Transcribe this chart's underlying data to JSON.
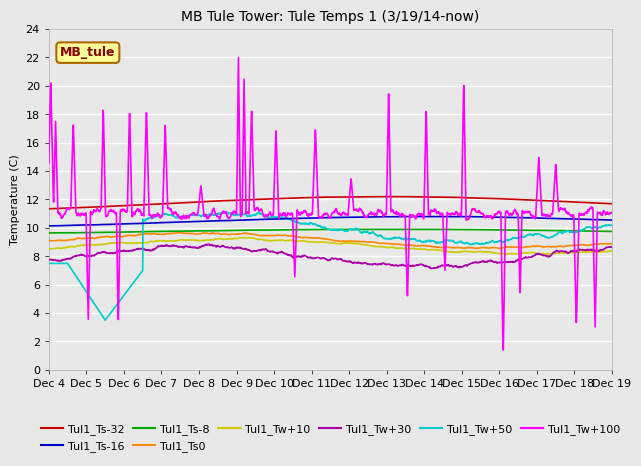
{
  "title": "MB Tule Tower: Tule Temps 1 (3/19/14-now)",
  "ylabel": "Temperature (C)",
  "xlim": [
    0,
    15
  ],
  "ylim": [
    0,
    24
  ],
  "yticks": [
    0,
    2,
    4,
    6,
    8,
    10,
    12,
    14,
    16,
    18,
    20,
    22,
    24
  ],
  "xtick_labels": [
    "Dec 4",
    "Dec 5",
    "Dec 6",
    "Dec 7",
    "Dec 8",
    "Dec 9",
    "Dec 10",
    "Dec 11",
    "Dec 12",
    "Dec 13",
    "Dec 14",
    "Dec 15",
    "Dec 16",
    "Dec 17",
    "Dec 18",
    "Dec 19"
  ],
  "bg_color": "#e8e8e8",
  "grid_color": "#ffffff",
  "legend_label": "MB_tule",
  "legend_bg": "#ffff99",
  "legend_border": "#aa6600",
  "legend_text_color": "#880000",
  "series": [
    {
      "label": "Tul1_Ts-32",
      "color": "#cc0000",
      "lw": 1.2,
      "zorder": 5
    },
    {
      "label": "Tul1_Ts-16",
      "color": "#0000cc",
      "lw": 1.2,
      "zorder": 4
    },
    {
      "label": "Tul1_Ts-8",
      "color": "#00aa00",
      "lw": 1.2,
      "zorder": 3
    },
    {
      "label": "Tul1_Ts0",
      "color": "#ff8800",
      "lw": 1.2,
      "zorder": 3
    },
    {
      "label": "Tul1_Tw+10",
      "color": "#cccc00",
      "lw": 1.2,
      "zorder": 3
    },
    {
      "label": "Tul1_Tw+30",
      "color": "#aa00aa",
      "lw": 1.2,
      "zorder": 3
    },
    {
      "label": "Tul1_Tw+50",
      "color": "#00cccc",
      "lw": 1.2,
      "zorder": 3
    },
    {
      "label": "Tul1_Tw+100",
      "color": "#ff00ff",
      "lw": 1.2,
      "zorder": 6
    }
  ],
  "ncol_legend": 6,
  "title_fontsize": 10,
  "axis_fontsize": 8,
  "legend_fontsize": 8
}
